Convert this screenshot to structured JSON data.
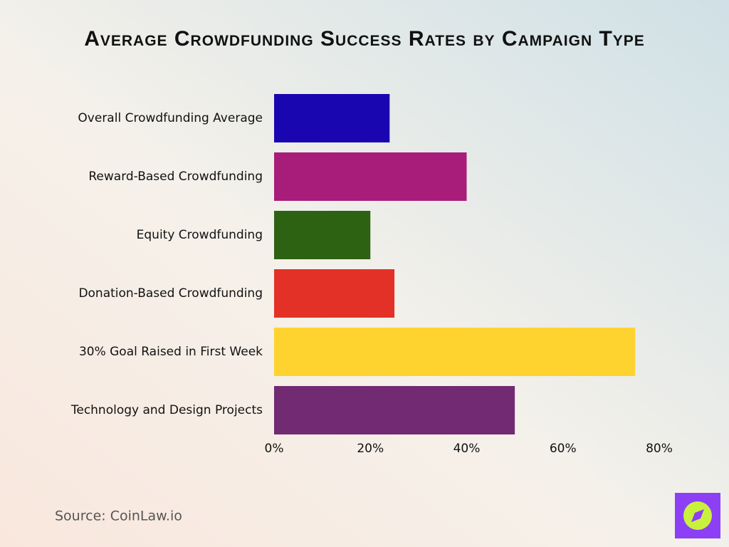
{
  "chart_data": {
    "type": "bar",
    "orientation": "horizontal",
    "title": "Average Crowdfunding Success Rates by Campaign Type",
    "categories": [
      "Overall Crowdfunding Average",
      "Reward-Based Crowdfunding",
      "Equity Crowdfunding",
      "Donation-Based Crowdfunding",
      "30% Goal Raised in First Week",
      "Technology and Design Projects"
    ],
    "values": [
      24,
      40,
      20,
      25,
      75,
      50
    ],
    "colors": [
      "#1a06b0",
      "#a81d7a",
      "#2e6213",
      "#e33127",
      "#fed330",
      "#722a72"
    ],
    "xlim": [
      0,
      80
    ],
    "xticks": [
      {
        "value": 0,
        "label": "0%"
      },
      {
        "value": 20,
        "label": "20%"
      },
      {
        "value": 40,
        "label": "40%"
      },
      {
        "value": 60,
        "label": "60%"
      },
      {
        "value": 80,
        "label": "80%"
      }
    ],
    "grid": false,
    "source": "Source: CoinLaw.io"
  }
}
